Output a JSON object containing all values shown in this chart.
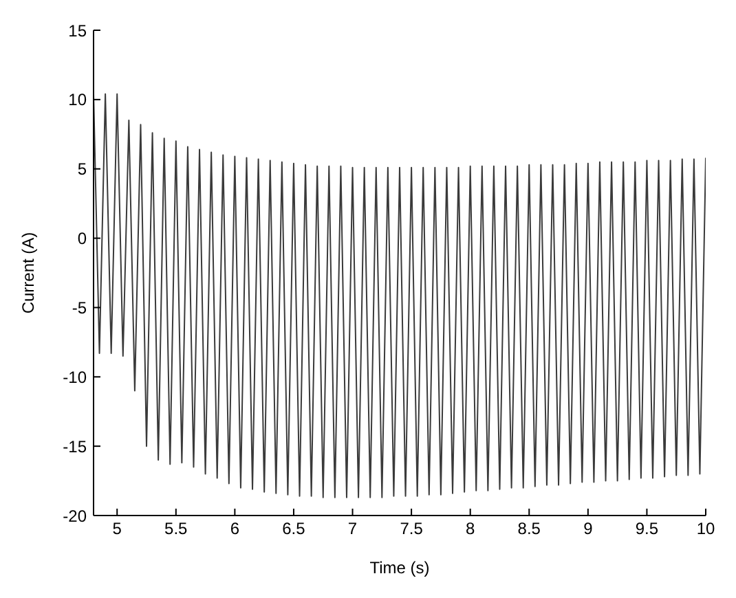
{
  "chart_data": {
    "type": "line",
    "xlabel": "Time (s)",
    "ylabel": "Current (A)",
    "xlim": [
      4.8,
      10
    ],
    "xticks": [
      5,
      5.5,
      6,
      6.5,
      7,
      7.5,
      8,
      8.5,
      9,
      9.5,
      10
    ],
    "ylim": [
      -20,
      15
    ],
    "yticks": [
      -20,
      -15,
      -10,
      -5,
      0,
      5,
      10,
      15
    ],
    "grid": false,
    "marker": "none",
    "line_style": "solid",
    "series": [
      {
        "color": "#3a3a3a",
        "x": [
          4.8,
          4.85,
          4.9,
          4.95,
          5.0,
          5.05,
          5.1,
          5.15,
          5.2,
          5.25,
          5.3,
          5.35,
          5.4,
          5.45,
          5.5,
          5.55,
          5.6,
          5.65,
          5.7,
          5.75,
          5.8,
          5.85,
          5.9,
          5.95,
          6.0,
          6.05,
          6.1,
          6.15,
          6.2,
          6.25,
          6.3,
          6.35,
          6.4,
          6.45,
          6.5,
          6.55,
          6.6,
          6.65,
          6.7,
          6.75,
          6.8,
          6.85,
          6.9,
          6.95,
          7.0,
          7.05,
          7.1,
          7.15,
          7.2,
          7.25,
          7.3,
          7.35,
          7.4,
          7.45,
          7.5,
          7.55,
          7.6,
          7.65,
          7.7,
          7.75,
          7.8,
          7.85,
          7.9,
          7.95,
          8.0,
          8.05,
          8.1,
          8.15,
          8.2,
          8.25,
          8.3,
          8.35,
          8.4,
          8.45,
          8.5,
          8.55,
          8.6,
          8.65,
          8.7,
          8.75,
          8.8,
          8.85,
          8.9,
          8.95,
          9.0,
          9.05,
          9.1,
          9.15,
          9.2,
          9.25,
          9.3,
          9.35,
          9.4,
          9.45,
          9.5,
          9.55,
          9.6,
          9.65,
          9.7,
          9.75,
          9.8,
          9.85,
          9.9,
          9.95,
          10.0
        ],
        "values": [
          10.4,
          -8.3,
          10.4,
          -8.3,
          10.4,
          -8.5,
          8.5,
          -11,
          8.2,
          -15,
          7.6,
          -16,
          7.2,
          -16.3,
          7,
          -16.2,
          6.6,
          -16.5,
          6.4,
          -17,
          6.2,
          -17.3,
          6,
          -17.7,
          5.9,
          -18,
          5.8,
          -18.1,
          5.7,
          -18.3,
          5.6,
          -18.4,
          5.5,
          -18.5,
          5.4,
          -18.6,
          5.3,
          -18.6,
          5.2,
          -18.7,
          5.2,
          -18.7,
          5.2,
          -18.7,
          5.1,
          -18.7,
          5.1,
          -18.7,
          5.1,
          -18.7,
          5.1,
          -18.6,
          5.1,
          -18.6,
          5.1,
          -18.6,
          5.1,
          -18.5,
          5.1,
          -18.5,
          5.1,
          -18.4,
          5.1,
          -18.3,
          5.2,
          -18.2,
          5.2,
          -18.2,
          5.2,
          -18.1,
          5.2,
          -18,
          5.2,
          -18,
          5.3,
          -17.9,
          5.3,
          -17.8,
          5.3,
          -17.8,
          5.3,
          -17.7,
          5.4,
          -17.6,
          5.4,
          -17.6,
          5.5,
          -17.5,
          5.5,
          -17.5,
          5.5,
          -17.4,
          5.5,
          -17.3,
          5.6,
          -17.3,
          5.6,
          -17.2,
          5.6,
          -17.1,
          5.7,
          -17.1,
          5.7,
          -17,
          5.8
        ]
      }
    ]
  }
}
